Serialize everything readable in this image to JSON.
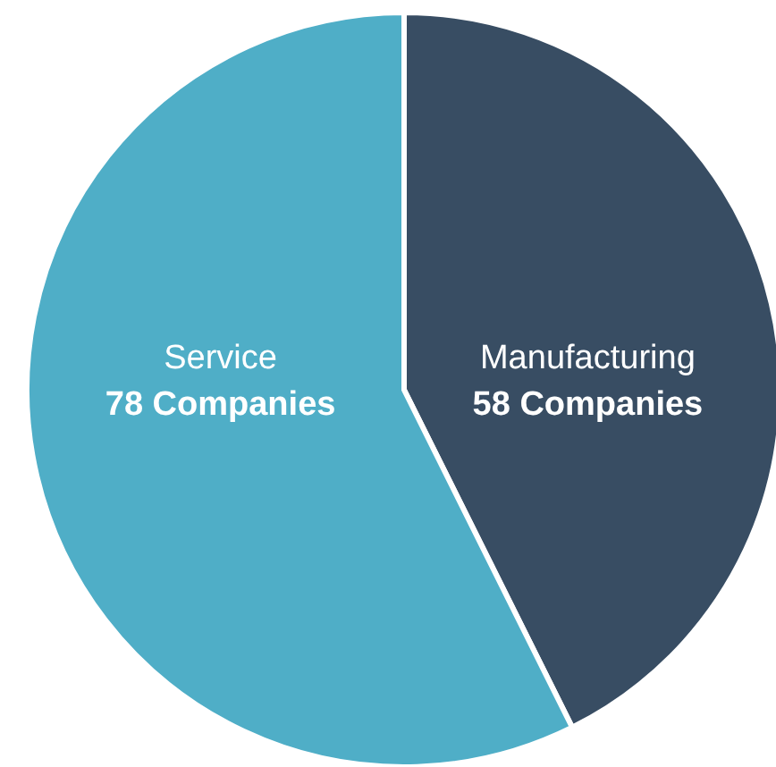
{
  "chart_data": {
    "type": "pie",
    "categories": [
      "Manufacturing",
      "Service"
    ],
    "values": [
      58,
      78
    ],
    "colors": [
      "#384d63",
      "#4faec7"
    ],
    "value_labels": [
      "58 Companies",
      "78 Companies"
    ]
  }
}
